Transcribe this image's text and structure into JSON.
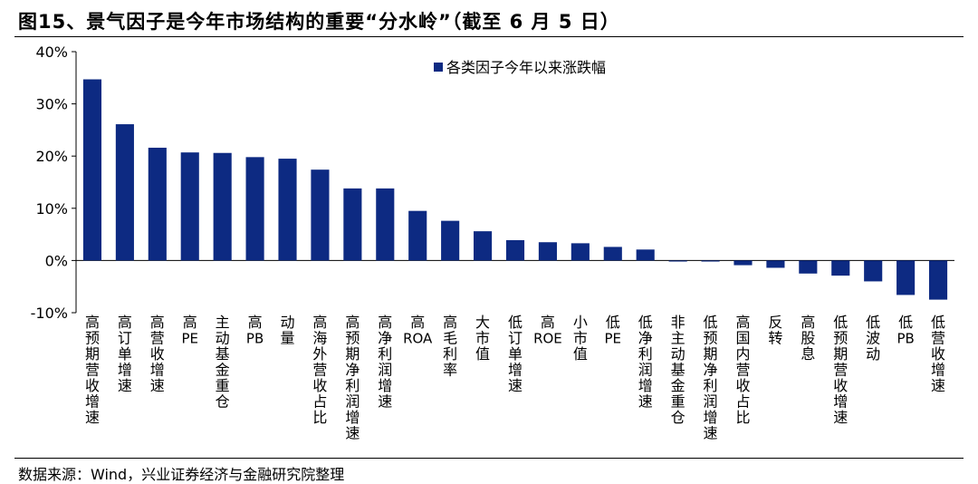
{
  "title": "图15、景气因子是今年市场结构的重要“分水岭”（截至 6 月 5 日）",
  "source": "数据来源：Wind，兴业证券经济与金融研究院整理",
  "colors": {
    "bar": "#0d2a82"
  },
  "chart_data": {
    "type": "bar",
    "title": "",
    "xlabel": "",
    "ylabel": "",
    "ylim": [
      -10,
      40
    ],
    "yticks": [
      "40%",
      "30%",
      "20%",
      "10%",
      "0%",
      "-10%"
    ],
    "legend": {
      "position": "top-right"
    },
    "grid": false,
    "categories": [
      "高预期营收增速",
      "高订单增速",
      "高营收增速",
      "高PE",
      "主动基金重仓",
      "高PB",
      "动量",
      "高海外营收占比",
      "高预期净利润增速",
      "高净利润增速",
      "高ROA",
      "高毛利率",
      "大市值",
      "低订单增速",
      "高ROE",
      "小市值",
      "低PE",
      "低净利润增速",
      "非主动基金重仓",
      "低预期净利润增速",
      "高国内营收占比",
      "反转",
      "高股息",
      "低预期营收增速",
      "低波动",
      "低PB",
      "低营收增速"
    ],
    "series": [
      {
        "name": "各类因子今年以来涨跌幅",
        "values": [
          34.7,
          26.1,
          21.6,
          20.7,
          20.6,
          19.8,
          19.5,
          17.4,
          13.8,
          13.8,
          9.5,
          7.6,
          5.6,
          3.9,
          3.5,
          3.3,
          2.6,
          2.1,
          -0.2,
          -0.2,
          -0.9,
          -1.4,
          -2.5,
          -2.9,
          -4.0,
          -6.6,
          -7.5
        ]
      }
    ]
  }
}
